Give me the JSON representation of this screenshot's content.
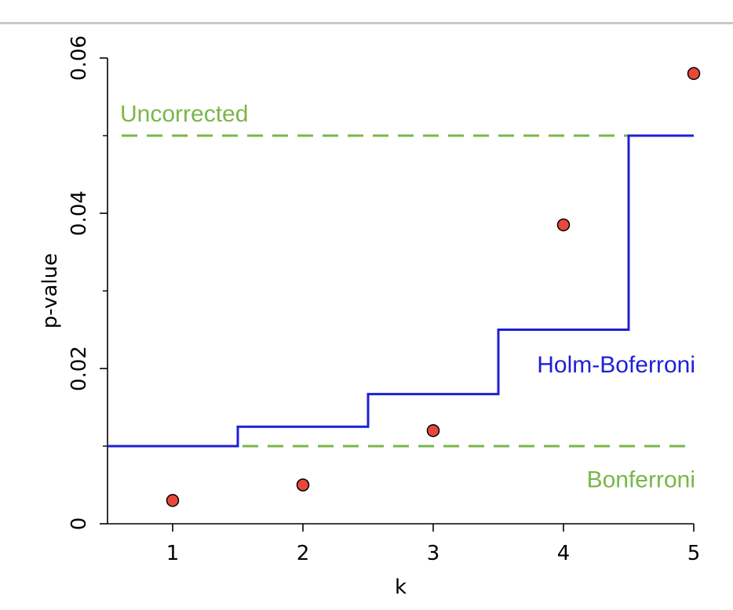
{
  "chart_data": {
    "type": "scatter",
    "xlabel": "k",
    "ylabel": "p-value",
    "xlim": [
      0.5,
      5
    ],
    "ylim": [
      0,
      0.06
    ],
    "x_ticks": [
      {
        "value": 1,
        "label": "1"
      },
      {
        "value": 2,
        "label": "2"
      },
      {
        "value": 3,
        "label": "3"
      },
      {
        "value": 4,
        "label": "4"
      },
      {
        "value": 5,
        "label": "5"
      }
    ],
    "y_ticks": [
      {
        "value": 0,
        "label": "0"
      },
      {
        "value": 0.02,
        "label": "0.02"
      },
      {
        "value": 0.04,
        "label": "0.04"
      },
      {
        "value": 0.06,
        "label": "0.06"
      }
    ],
    "y_minor_ticks": [
      0.01,
      0.03,
      0.05
    ],
    "points": {
      "x": [
        1,
        2,
        3,
        4,
        5
      ],
      "y": [
        0.003,
        0.005,
        0.012,
        0.0385,
        0.058
      ],
      "fill_color": "#e8483a",
      "edge_color": "#000000"
    },
    "holm_bonferroni": {
      "label": "Holm-Boferroni",
      "color": "#1f1fd6",
      "steps": [
        {
          "x_start": 0.5,
          "x_end": 1.5,
          "y": 0.01
        },
        {
          "x_start": 1.5,
          "x_end": 2.5,
          "y": 0.0125
        },
        {
          "x_start": 2.5,
          "x_end": 3.5,
          "y": 0.0167
        },
        {
          "x_start": 3.5,
          "x_end": 4.5,
          "y": 0.025
        },
        {
          "x_start": 4.5,
          "x_end": 5,
          "y": 0.05
        }
      ]
    },
    "uncorrected": {
      "label": "Uncorrected",
      "y": 0.05,
      "x_start": 0.5,
      "x_end": 5,
      "color": "#7ab648"
    },
    "bonferroni": {
      "label": "Bonferroni",
      "y": 0.01,
      "x_start": 1.5,
      "x_end": 5,
      "color": "#7ab648"
    },
    "grid": false,
    "legend": "none"
  }
}
